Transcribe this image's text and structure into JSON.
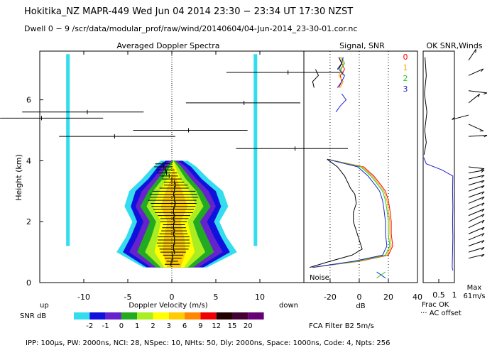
{
  "header": {
    "title": "Hokitika_NZ  MAPR-449  Wed Jun 04 2014 23:30 − 23:34 UT 17:30 NZST",
    "dwell": "Dwell  0 −  9  /scr/data/modular_prof/raw/wind/20140604/04-Jun-2014_23-30-01.cor.nc"
  },
  "footer": {
    "params": "IPP: 100μs,  PW: 2000ns,  NCI:  28,  NSpec: 10, NHts: 50,  Dly: 2000ns,  Space: 1000ns,  Code: 4,  Npts: 256",
    "fca_filter": "FCA Filter B2  5m/s"
  },
  "colors": {
    "snr_scale": [
      "#33ddee",
      "#1111dd",
      "#6622cc",
      "#22aa22",
      "#aaee22",
      "#ffff00",
      "#ffcc00",
      "#ff8800",
      "#ee0000",
      "#220000",
      "#440033",
      "#660077"
    ],
    "bg": "#ffffff"
  },
  "chart_data": [
    {
      "type": "heatmap",
      "title": "Averaged Doppler Spectra",
      "xlabel": "Doppler Velocity (m/s)",
      "ylabel": "Height (km)",
      "xlim": [
        -15,
        15
      ],
      "ylim": [
        0,
        7.6
      ],
      "xticks": [
        -10,
        -5,
        0,
        5,
        10
      ],
      "yticks": [
        0,
        2,
        4,
        6
      ],
      "left_annotation": "up",
      "right_annotation": "down",
      "colorbar": {
        "label": "SNR dB",
        "ticks": [
          "-2",
          "-1",
          "0",
          "1",
          "2",
          "3",
          "6",
          "9",
          "12",
          "15",
          "20"
        ],
        "colors": [
          "#33ddee",
          "#1111dd",
          "#6622cc",
          "#22aa22",
          "#aaee22",
          "#ffff00",
          "#ffcc00",
          "#ff8800",
          "#ee0000",
          "#220000",
          "#440033",
          "#660077"
        ]
      },
      "radial_velocity": [
        {
          "height": 6.9,
          "vel": 13.2,
          "lo": 6.2,
          "hi": 19.5
        },
        {
          "height": 5.9,
          "vel": 8.2,
          "lo": 1.6,
          "hi": 14.6
        },
        {
          "height": 5.6,
          "vel": -9.6,
          "lo": -17.0,
          "hi": -3.2
        },
        {
          "height": 5.4,
          "vel": -14.8,
          "lo": -19.5,
          "hi": -7.8
        },
        {
          "height": 5.0,
          "vel": 1.9,
          "lo": -4.4,
          "hi": 8.6
        },
        {
          "height": 4.8,
          "vel": -6.5,
          "lo": -12.8,
          "hi": 0.4
        },
        {
          "height": 4.4,
          "vel": 14.0,
          "lo": 7.3,
          "hi": 20.0
        },
        {
          "height": 3.9,
          "vel": -1.0,
          "lo": -1.9,
          "hi": -0.2
        },
        {
          "height": 3.8,
          "vel": -0.9,
          "lo": -2.0,
          "hi": 0.1
        },
        {
          "height": 3.7,
          "vel": -0.7,
          "lo": -1.8,
          "hi": 0.3
        },
        {
          "height": 3.6,
          "vel": -0.6,
          "lo": -1.7,
          "hi": 0.6
        },
        {
          "height": 3.5,
          "vel": -0.3,
          "lo": -1.3,
          "hi": 0.7
        },
        {
          "height": 3.4,
          "vel": 0.0,
          "lo": -1.1,
          "hi": 1.1
        },
        {
          "height": 3.3,
          "vel": 0.3,
          "lo": -0.9,
          "hi": 1.4
        },
        {
          "height": 3.2,
          "vel": 0.4,
          "lo": -0.9,
          "hi": 1.8
        },
        {
          "height": 3.1,
          "vel": 0.3,
          "lo": -1.4,
          "hi": 1.9
        },
        {
          "height": 3.0,
          "vel": 0.3,
          "lo": -2.2,
          "hi": 2.7
        },
        {
          "height": 2.9,
          "vel": 0.2,
          "lo": -2.5,
          "hi": 2.9
        },
        {
          "height": 2.8,
          "vel": 0.3,
          "lo": -2.5,
          "hi": 3.0
        },
        {
          "height": 2.7,
          "vel": 0.3,
          "lo": -2.7,
          "hi": 2.8
        },
        {
          "height": 2.6,
          "vel": 0.4,
          "lo": -2.4,
          "hi": 2.8
        },
        {
          "height": 2.5,
          "vel": 0.3,
          "lo": -2.3,
          "hi": 2.7
        },
        {
          "height": 2.4,
          "vel": 0.2,
          "lo": -2.1,
          "hi": 2.5
        },
        {
          "height": 2.3,
          "vel": 0.2,
          "lo": -1.9,
          "hi": 2.4
        },
        {
          "height": 2.2,
          "vel": 0.3,
          "lo": -1.6,
          "hi": 2.1
        },
        {
          "height": 2.1,
          "vel": 0.2,
          "lo": -1.3,
          "hi": 1.9
        },
        {
          "height": 2.0,
          "vel": 0.3,
          "lo": -1.3,
          "hi": 1.7
        },
        {
          "height": 1.9,
          "vel": 0.2,
          "lo": -1.0,
          "hi": 1.5
        },
        {
          "height": 1.8,
          "vel": 0.2,
          "lo": -1.1,
          "hi": 1.6
        },
        {
          "height": 1.7,
          "vel": 0.3,
          "lo": -1.2,
          "hi": 1.7
        },
        {
          "height": 1.6,
          "vel": 0.2,
          "lo": -1.4,
          "hi": 1.8
        },
        {
          "height": 1.5,
          "vel": 0.3,
          "lo": -1.6,
          "hi": 2.0
        },
        {
          "height": 1.4,
          "vel": 0.3,
          "lo": -1.6,
          "hi": 2.0
        },
        {
          "height": 1.3,
          "vel": 0.3,
          "lo": -1.7,
          "hi": 2.1
        },
        {
          "height": 1.2,
          "vel": 0.2,
          "lo": -1.6,
          "hi": 2.0
        },
        {
          "height": 1.1,
          "vel": 0.2,
          "lo": -1.4,
          "hi": 1.9
        },
        {
          "height": 1.0,
          "vel": 0.3,
          "lo": -1.3,
          "hi": 1.6
        },
        {
          "height": 0.9,
          "vel": 0.1,
          "lo": -1.0,
          "hi": 1.3
        },
        {
          "height": 0.8,
          "vel": 0.1,
          "lo": -0.8,
          "hi": 1.1
        },
        {
          "height": 0.7,
          "vel": 0.0,
          "lo": -0.6,
          "hi": 0.7
        },
        {
          "height": 0.6,
          "vel": -0.1,
          "lo": -0.8,
          "hi": 0.9
        }
      ],
      "snr_blob_halfwidth": [
        {
          "height": 0.5,
          "w": [
            0.8,
            1.2,
            1.6,
            2.2,
            2.8,
            3.4,
            3.8
          ]
        },
        {
          "height": 1.0,
          "w": [
            1.4,
            2.4,
            3.6,
            4.6,
            5.6,
            6.4,
            7.2
          ]
        },
        {
          "height": 1.5,
          "w": [
            1.2,
            2.0,
            2.8,
            3.8,
            4.6,
            5.4,
            6.0
          ]
        },
        {
          "height": 2.0,
          "w": [
            0.8,
            1.6,
            2.2,
            3.0,
            3.8,
            4.6,
            5.2
          ]
        },
        {
          "height": 2.5,
          "w": [
            1.6,
            2.6,
            3.4,
            4.2,
            4.8,
            5.4,
            6.2
          ]
        },
        {
          "height": 3.0,
          "w": [
            1.0,
            1.8,
            2.6,
            3.2,
            4.0,
            4.8,
            5.6
          ]
        },
        {
          "height": 3.4,
          "w": [
            0.3,
            0.8,
            1.4,
            2.0,
            2.6,
            3.2,
            4.0
          ]
        },
        {
          "height": 3.8,
          "w": [
            0.0,
            0.2,
            0.5,
            0.9,
            1.4,
            2.0,
            2.6
          ]
        },
        {
          "height": 4.0,
          "w": [
            0.0,
            0.0,
            0.0,
            0.2,
            0.5,
            1.0,
            1.6
          ]
        }
      ]
    },
    {
      "type": "line",
      "title": "Signal, SNR",
      "xlabel": "dB",
      "xlim": [
        -38,
        40
      ],
      "ylim": [
        0,
        7.6
      ],
      "xticks": [
        -20,
        0,
        20,
        40
      ],
      "dotted_x": [
        -20,
        0,
        20
      ],
      "legend": [
        "0",
        "1",
        "2",
        "3"
      ],
      "noise_label": "Noise",
      "series": [
        {
          "name": "0",
          "color": "#ff0000",
          "height": [
            4.05,
            3.8,
            3.5,
            3.2,
            3.0,
            2.7,
            2.4,
            2.0,
            1.6,
            1.2,
            0.9,
            0.7,
            0.5
          ],
          "db": [
            -22,
            3,
            10,
            15,
            18,
            20,
            21,
            22,
            22,
            23,
            20,
            0,
            -32
          ]
        },
        {
          "name": "1",
          "color": "#eeaa00",
          "height": [
            4.05,
            3.8,
            3.5,
            3.2,
            3.0,
            2.7,
            2.4,
            2.0,
            1.6,
            1.2,
            0.9,
            0.7,
            0.5
          ],
          "db": [
            -22,
            2,
            9,
            14,
            17,
            19,
            20,
            21,
            21,
            22,
            19,
            -1,
            -32
          ]
        },
        {
          "name": "2",
          "color": "#22cc22",
          "height": [
            4.05,
            3.8,
            3.5,
            3.2,
            3.0,
            2.7,
            2.4,
            2.0,
            1.6,
            1.2,
            0.9,
            0.7,
            0.5
          ],
          "db": [
            -22,
            1,
            8,
            13,
            16,
            18,
            19,
            20,
            20,
            21,
            18,
            -2,
            -32
          ]
        },
        {
          "name": "3",
          "color": "#2222cc",
          "height": [
            4.05,
            3.8,
            3.5,
            3.2,
            3.0,
            2.7,
            2.4,
            2.0,
            1.6,
            1.2,
            0.9,
            0.7,
            0.5
          ],
          "db": [
            -22,
            -1,
            6,
            11,
            14,
            16,
            17,
            18,
            18,
            19,
            16,
            -4,
            -32
          ]
        },
        {
          "name": "signal",
          "color": "#000000",
          "height": [
            4.05,
            3.8,
            3.5,
            3.1,
            2.9,
            2.6,
            2.3,
            2.0,
            1.7,
            1.4,
            1.1,
            0.9,
            0.7,
            0.5
          ],
          "db": [
            -22,
            -15,
            -10,
            -6,
            -3,
            -2,
            -4,
            -4,
            -2,
            0,
            2,
            -5,
            -20,
            -34
          ]
        }
      ],
      "upper_traces": [
        {
          "color": "#ff0000",
          "height": [
            7.4,
            7.2,
            7.0,
            6.8,
            6.6,
            6.4
          ],
          "db": [
            -14,
            -12,
            -10,
            -13,
            -12,
            -14
          ]
        },
        {
          "color": "#eeaa00",
          "height": [
            7.4,
            7.2,
            7.0,
            6.8,
            6.6,
            6.4
          ],
          "db": [
            -13,
            -11,
            -12,
            -14,
            -11,
            -13
          ]
        },
        {
          "color": "#22cc22",
          "height": [
            7.4,
            7.2,
            7.0,
            6.8
          ],
          "db": [
            -12,
            -10,
            -13,
            -11
          ]
        },
        {
          "color": "#2222cc",
          "height": [
            7.4,
            7.2,
            7.0,
            6.8,
            6.6,
            6.4
          ],
          "db": [
            -11,
            -12,
            -14,
            -10,
            -12,
            -15
          ]
        },
        {
          "color": "#2222cc",
          "height": [
            6.2,
            6.0,
            5.8,
            5.6
          ],
          "db": [
            -12,
            -9,
            -13,
            -16
          ]
        },
        {
          "color": "#000000",
          "height": [
            7.0,
            6.8,
            6.6,
            6.4
          ],
          "db": [
            -30,
            -28,
            -32,
            -31
          ]
        },
        {
          "color": "#000000",
          "height": [
            7.4,
            7.2,
            7.0
          ],
          "db": [
            -14,
            -12,
            -15
          ]
        }
      ]
    },
    {
      "type": "line",
      "title": "OK SNR,Winds",
      "xlabel": "Frac OK",
      "xlabel2": "AC offset",
      "xlim": [
        0,
        1
      ],
      "xticks": [
        "0.5",
        "1"
      ],
      "max_wind_label": "Max",
      "max_wind_value": "61m/s",
      "frac_ok": {
        "height": [
          0.4,
          0.5,
          1.0,
          1.5,
          2.0,
          2.5,
          3.0,
          3.5,
          3.7,
          3.9,
          4.1
        ],
        "value": [
          0.95,
          0.93,
          0.94,
          0.95,
          0.94,
          0.95,
          0.94,
          0.95,
          0.6,
          0.1,
          0.02
        ]
      },
      "wind_barbs": [
        {
          "height": 7.3,
          "u": 0.4,
          "v": 1.0
        },
        {
          "height": 6.8,
          "u": 0.8,
          "v": 0.6
        },
        {
          "height": 6.3,
          "u": 1.0,
          "v": -0.2
        },
        {
          "height": 5.9,
          "u": 0.6,
          "v": 0.8
        },
        {
          "height": 5.5,
          "u": -0.9,
          "v": -0.4
        },
        {
          "height": 5.2,
          "u": 0.8,
          "v": -0.6
        },
        {
          "height": 4.8,
          "u": 1.0,
          "v": 0.1
        },
        {
          "height": 3.8,
          "u": 1.0,
          "v": -0.2
        },
        {
          "height": 3.6,
          "u": 1.0,
          "v": 0.3
        },
        {
          "height": 3.4,
          "u": 1.0,
          "v": 0.4
        },
        {
          "height": 3.2,
          "u": 1.0,
          "v": 0.5
        },
        {
          "height": 3.0,
          "u": 1.0,
          "v": 0.6
        },
        {
          "height": 2.8,
          "u": 1.0,
          "v": 0.6
        },
        {
          "height": 2.6,
          "u": 1.0,
          "v": 0.7
        },
        {
          "height": 2.4,
          "u": 1.0,
          "v": 0.7
        },
        {
          "height": 2.2,
          "u": 1.0,
          "v": 0.7
        },
        {
          "height": 2.0,
          "u": 1.0,
          "v": 0.8
        },
        {
          "height": 1.8,
          "u": 1.0,
          "v": 0.8
        },
        {
          "height": 1.6,
          "u": 1.0,
          "v": 0.7
        },
        {
          "height": 1.4,
          "u": 1.0,
          "v": 0.7
        },
        {
          "height": 1.2,
          "u": 1.0,
          "v": 0.6
        },
        {
          "height": 1.0,
          "u": 1.0,
          "v": 0.5
        },
        {
          "height": 0.8,
          "u": 1.0,
          "v": 0.4
        }
      ]
    }
  ]
}
